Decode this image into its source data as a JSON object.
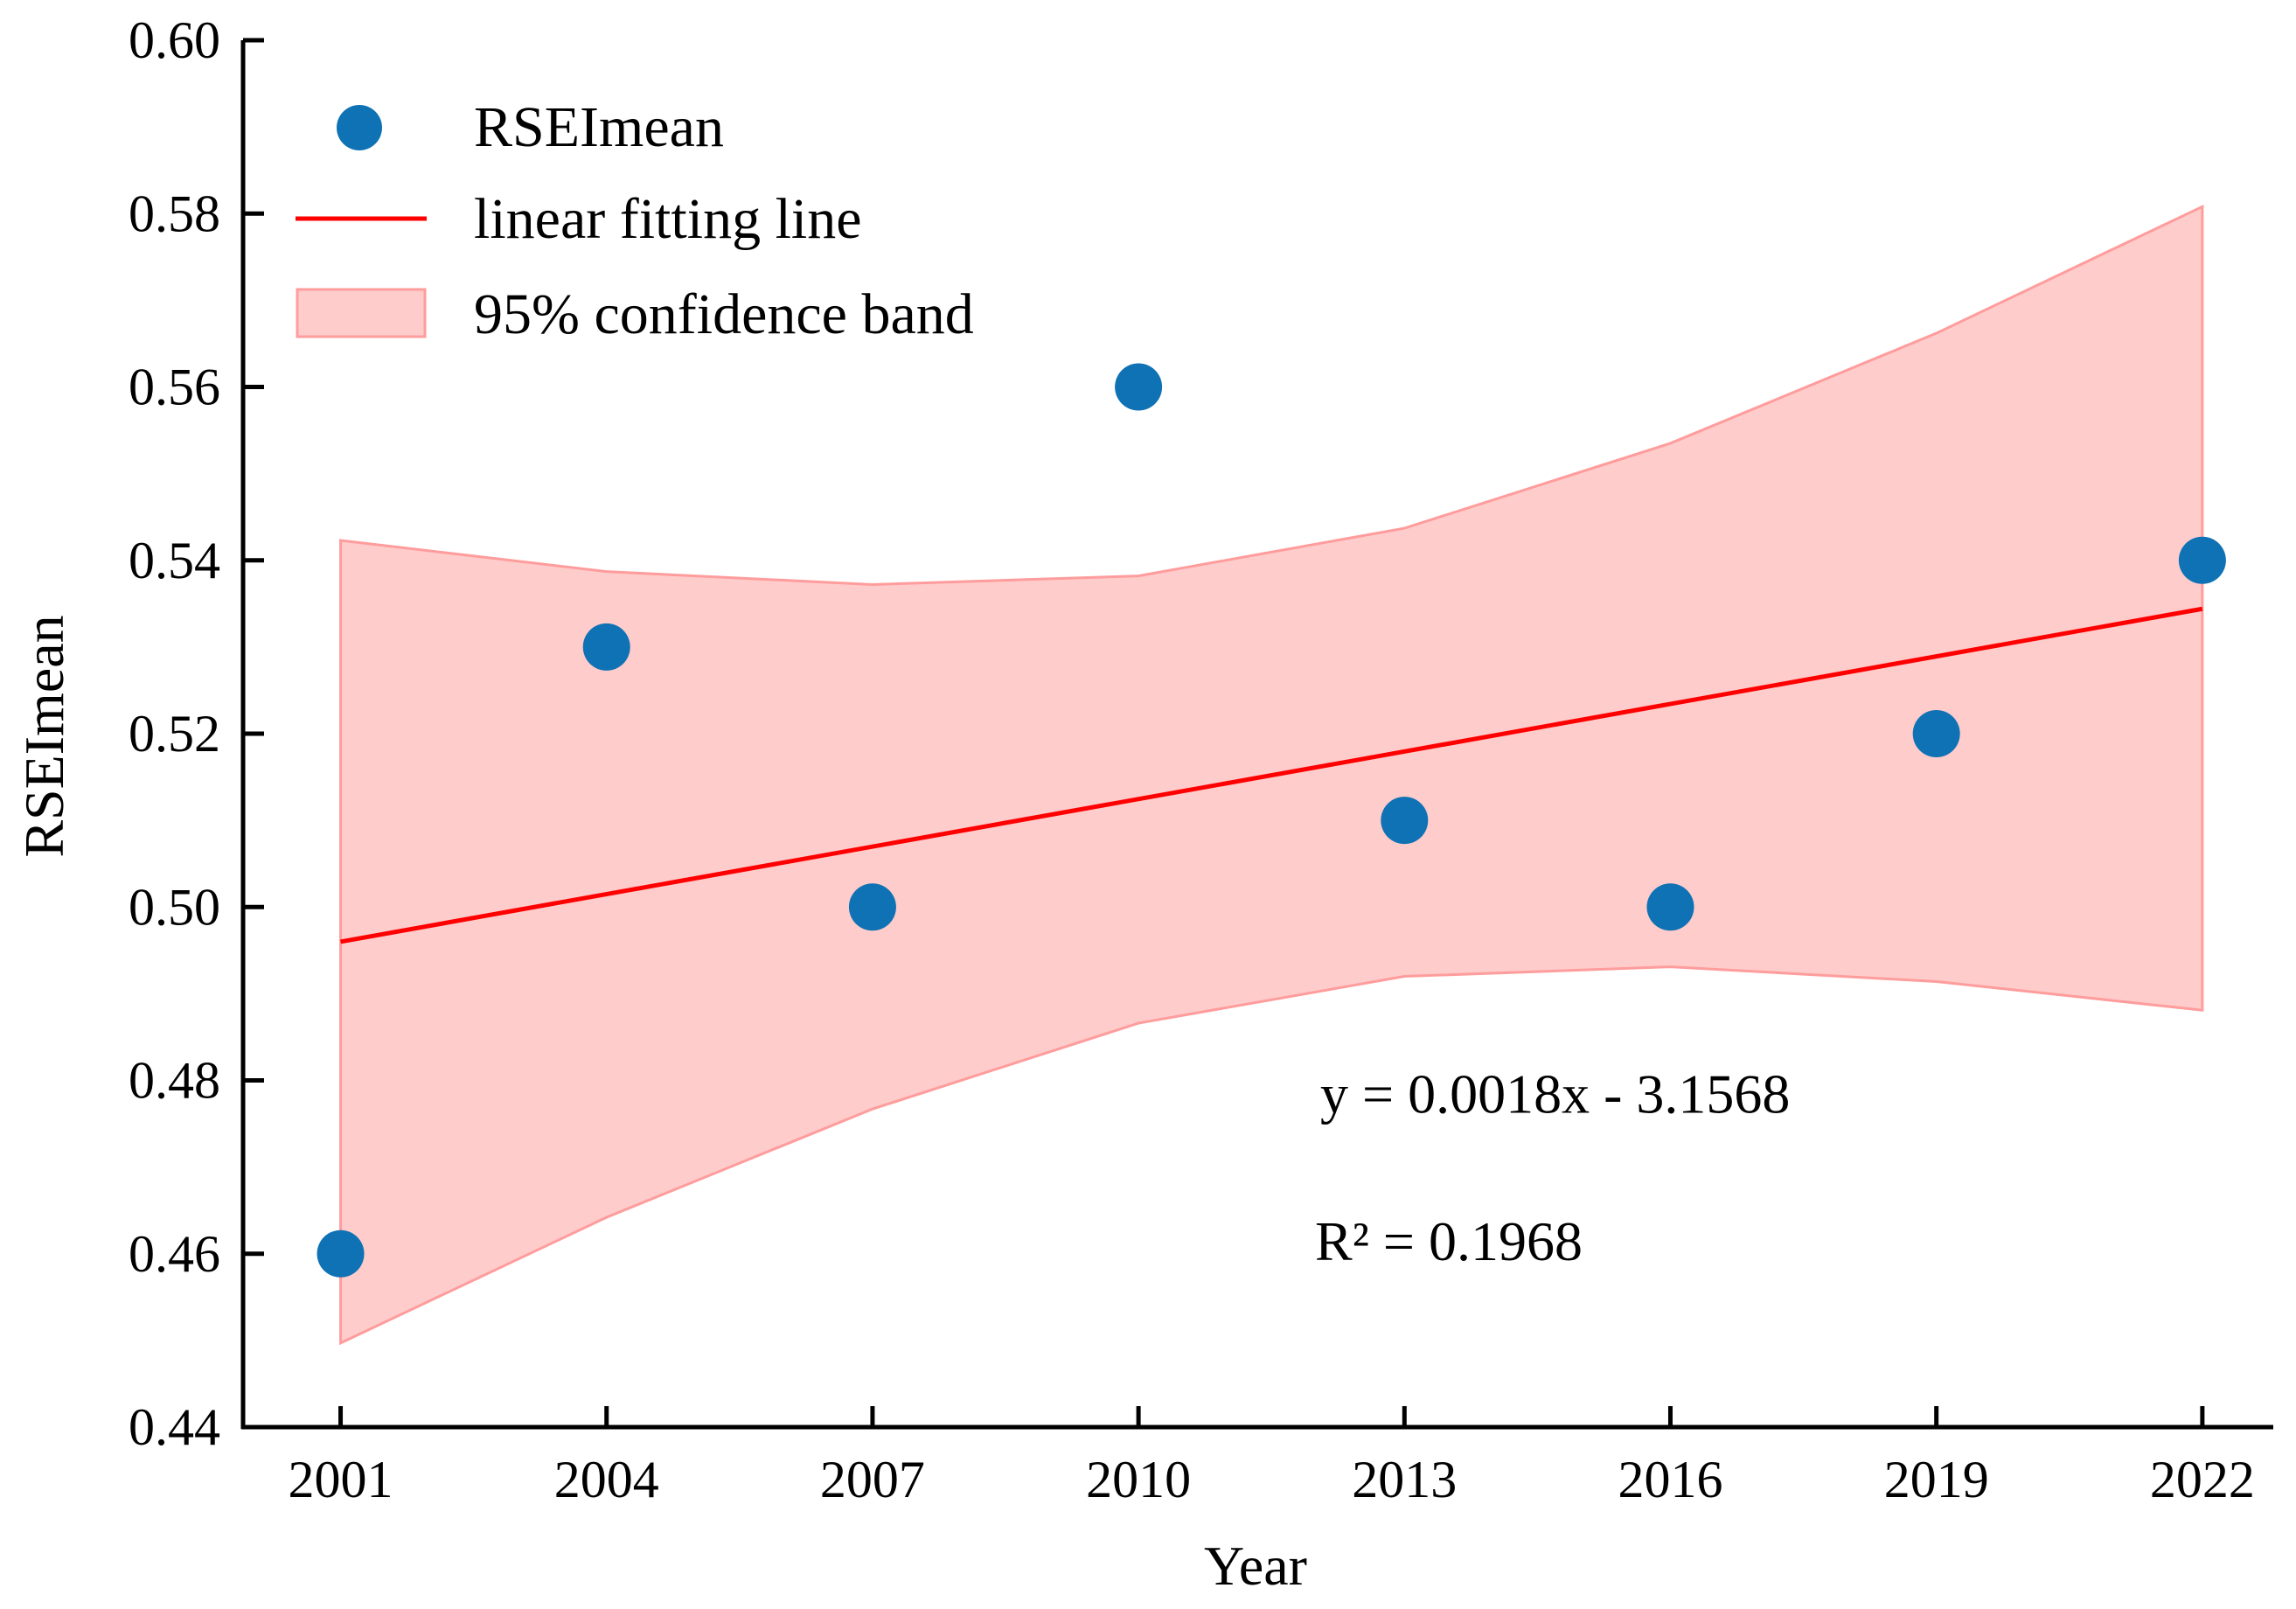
{
  "chart_data": {
    "type": "scatter",
    "title": "",
    "xlabel": "Year",
    "ylabel": "RSEImean",
    "xlim": [
      1999.9,
      2022.8
    ],
    "ylim": [
      0.44,
      0.6
    ],
    "x_ticks": [
      "2001",
      "2004",
      "2007",
      "2010",
      "2013",
      "2016",
      "2019",
      "2022"
    ],
    "y_ticks": [
      "0.44",
      "0.46",
      "0.48",
      "0.50",
      "0.52",
      "0.54",
      "0.56",
      "0.58",
      "0.60"
    ],
    "grid": false,
    "legend_position": "top-left",
    "series": [
      {
        "name": "RSEImean",
        "kind": "scatter",
        "color": "#0f72b4",
        "x": [
          2001,
          2004,
          2007,
          2010,
          2013,
          2016,
          2019,
          2022
        ],
        "y": [
          0.46,
          0.53,
          0.5,
          0.56,
          0.51,
          0.5,
          0.52,
          0.54
        ]
      },
      {
        "name": "linear fitting line",
        "kind": "line",
        "color": "#ff0000",
        "slope": 0.0018,
        "intercept": -3.1568,
        "x": [
          2001,
          2022
        ],
        "y": [
          0.496,
          0.5344
        ]
      },
      {
        "name": "95% confidence band",
        "kind": "band",
        "color": "#ff9999",
        "x": [
          2001,
          2004,
          2007,
          2010,
          2013,
          2016,
          2019,
          2022
        ],
        "upper": [
          0.5423,
          0.5387,
          0.5372,
          0.5382,
          0.5437,
          0.5535,
          0.5662,
          0.5808
        ],
        "lower": [
          0.4497,
          0.4642,
          0.4767,
          0.4866,
          0.492,
          0.4931,
          0.4914,
          0.4881
        ]
      }
    ],
    "annotations": [
      {
        "text": "y = 0.0018x - 3.1568",
        "x": 2014.7,
        "y": 0.4785
      },
      {
        "text": "R² = 0.1968",
        "x": 2013.5,
        "y": 0.4615
      }
    ]
  }
}
